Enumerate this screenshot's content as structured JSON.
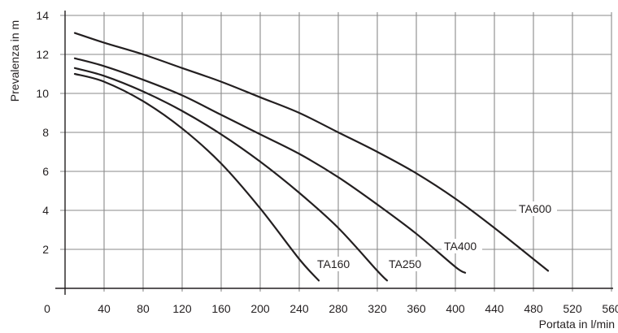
{
  "chart_data": {
    "type": "line",
    "xlabel": "Portata in l/min",
    "ylabel": "Prevalenza in m",
    "xlim": [
      0,
      560
    ],
    "ylim": [
      0,
      14
    ],
    "x_ticks": [
      0,
      40,
      80,
      120,
      160,
      200,
      240,
      280,
      320,
      360,
      400,
      440,
      480,
      520,
      560
    ],
    "x_tick_labels": [
      "0",
      "40",
      "80",
      "120",
      "160",
      "200",
      "240",
      "280",
      "320",
      "360",
      "400",
      "440",
      "480",
      "520",
      "560"
    ],
    "y_ticks": [
      2,
      4,
      6,
      8,
      10,
      12,
      14
    ],
    "y_tick_labels": [
      "2",
      "4",
      "6",
      "8",
      "10",
      "12",
      "14"
    ],
    "grid": true,
    "series": [
      {
        "name": "TA160",
        "x": [
          10,
          40,
          80,
          120,
          160,
          200,
          240,
          260
        ],
        "y": [
          11.0,
          10.6,
          9.6,
          8.2,
          6.4,
          4.1,
          1.5,
          0.4
        ]
      },
      {
        "name": "TA250",
        "x": [
          10,
          40,
          80,
          120,
          160,
          200,
          240,
          280,
          320,
          330
        ],
        "y": [
          11.3,
          10.9,
          10.1,
          9.1,
          7.9,
          6.5,
          4.9,
          3.1,
          0.9,
          0.4
        ]
      },
      {
        "name": "TA400",
        "x": [
          10,
          40,
          80,
          120,
          160,
          200,
          240,
          280,
          320,
          360,
          400,
          410
        ],
        "y": [
          11.8,
          11.4,
          10.7,
          9.9,
          8.9,
          7.9,
          6.9,
          5.7,
          4.3,
          2.8,
          1.1,
          0.8
        ]
      },
      {
        "name": "TA600",
        "x": [
          10,
          40,
          80,
          120,
          160,
          200,
          240,
          280,
          320,
          360,
          400,
          440,
          480,
          495
        ],
        "y": [
          13.1,
          12.6,
          12.0,
          11.3,
          10.6,
          9.8,
          9.0,
          8.0,
          7.0,
          5.9,
          4.6,
          3.1,
          1.5,
          0.9
        ]
      }
    ]
  }
}
